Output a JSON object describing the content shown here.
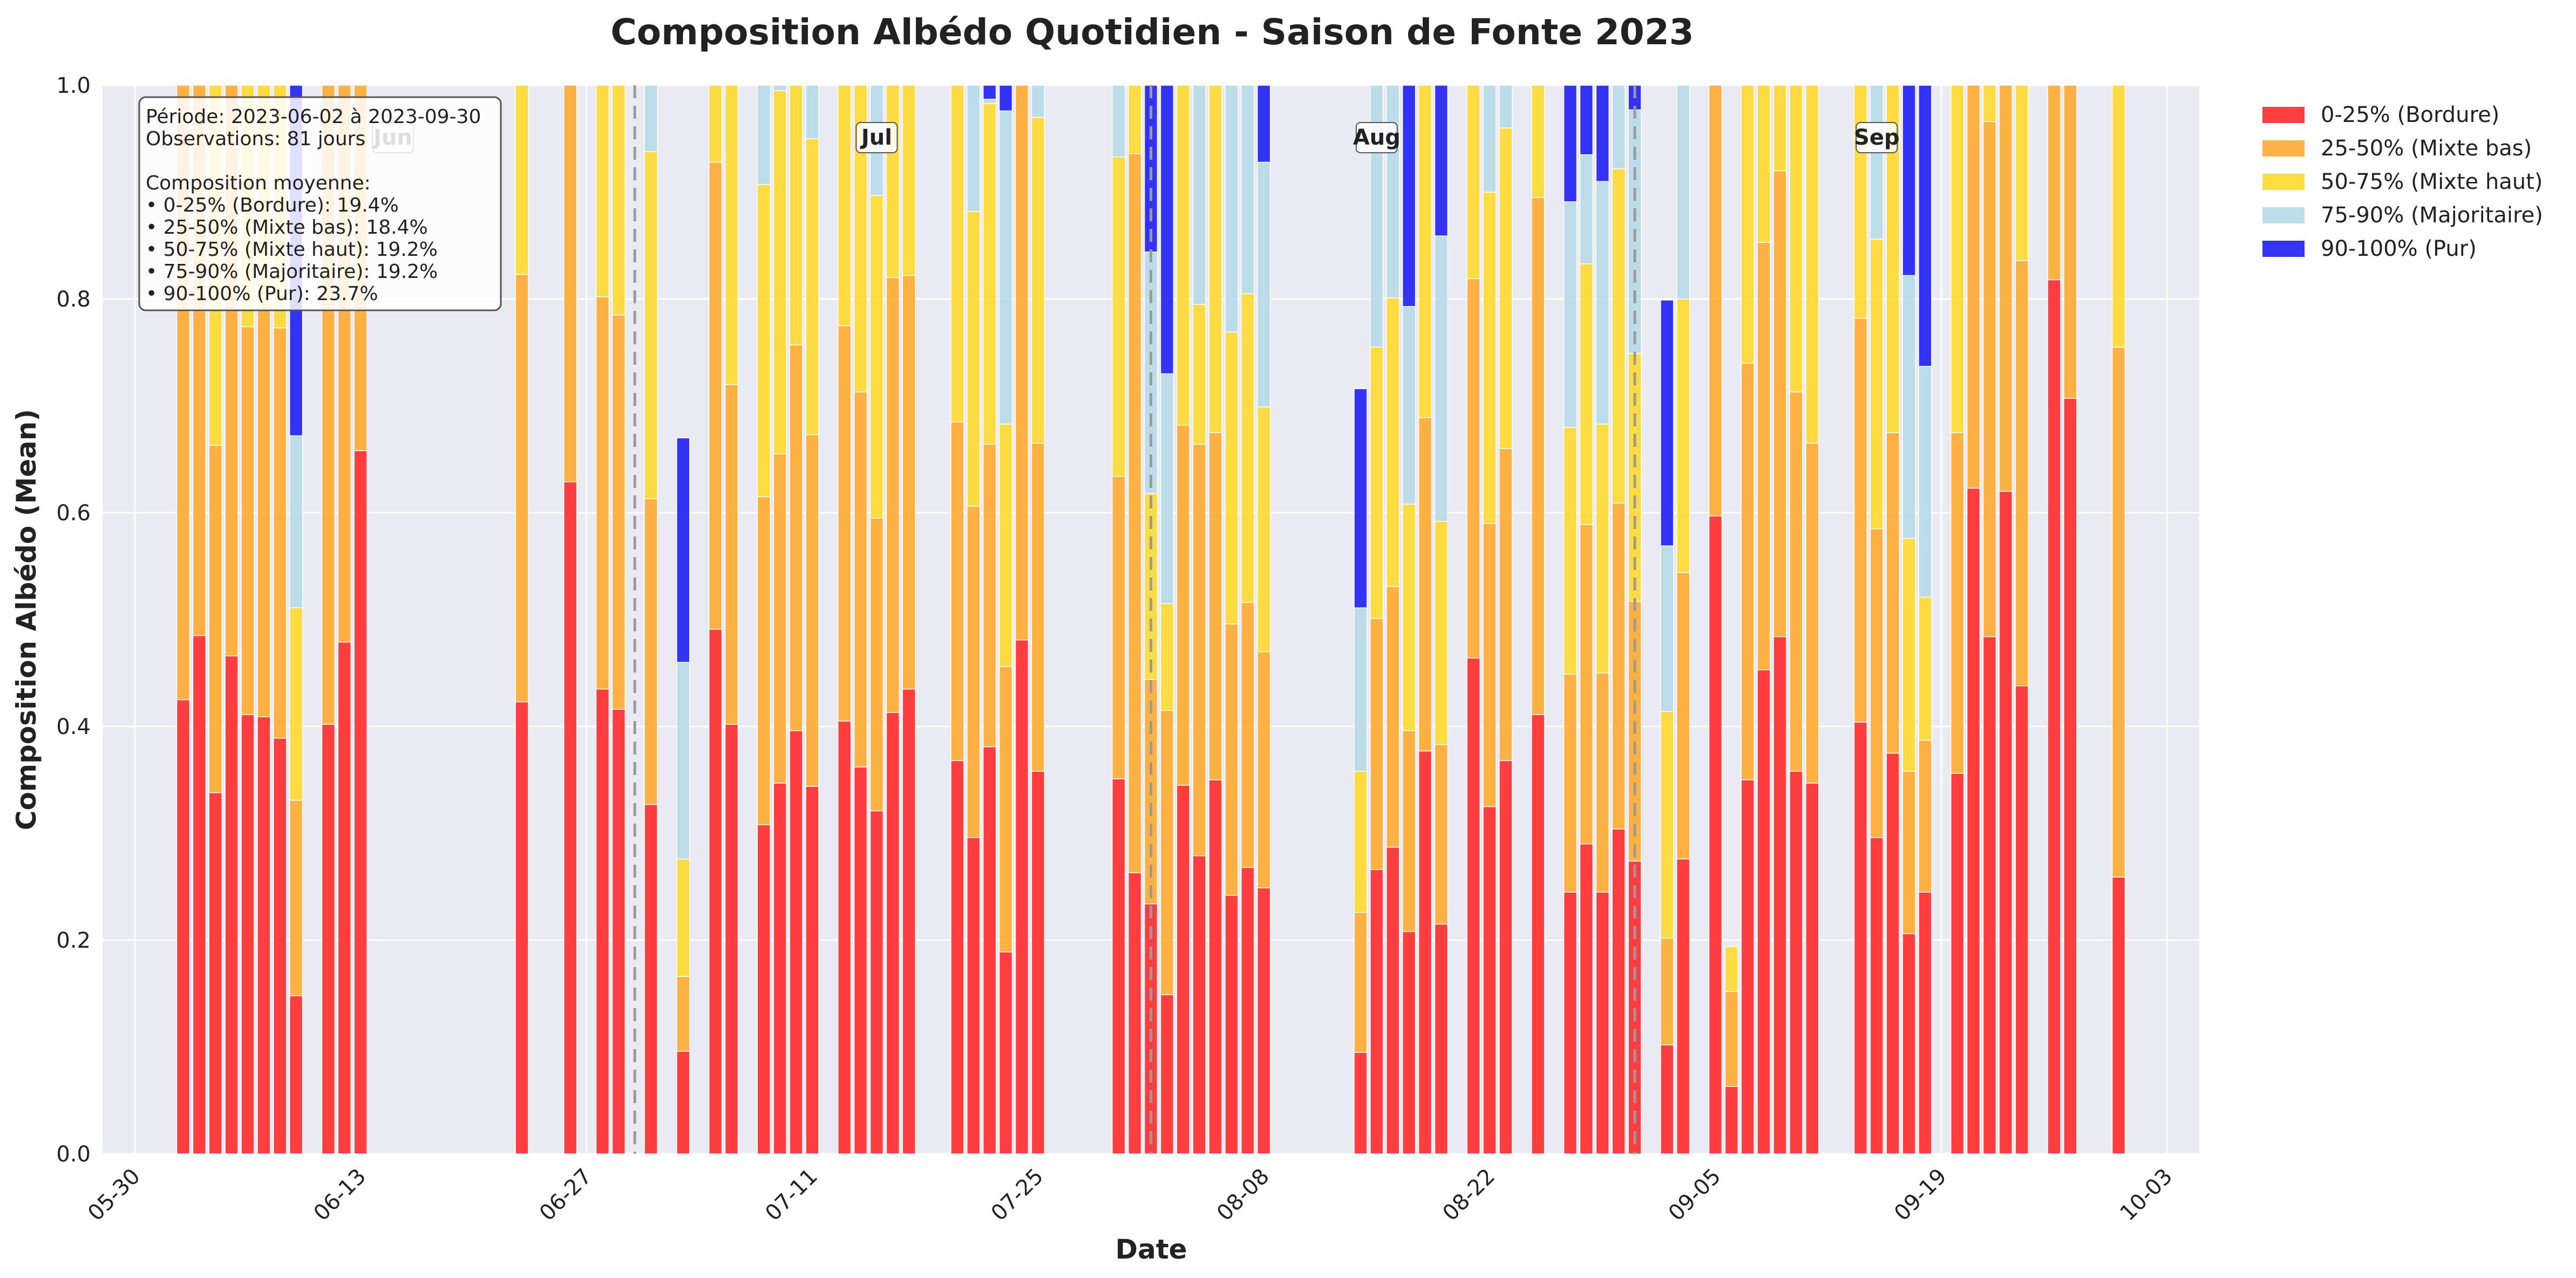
{
  "chart_data": {
    "type": "bar",
    "stacked": true,
    "title": "Composition Albédo Quotidien - Saison de Fonte 2023",
    "xlabel": "Date",
    "ylabel": "Composition Albédo (Mean)",
    "ylim": [
      0,
      1.0
    ],
    "yticks": [
      "0.0",
      "0.2",
      "0.4",
      "0.6",
      "0.8",
      "1.0"
    ],
    "xlim": [
      "2023-05-28",
      "2023-10-05"
    ],
    "xticks": [
      {
        "date": "2023-05-30",
        "label": "05-30"
      },
      {
        "date": "2023-06-13",
        "label": "06-13"
      },
      {
        "date": "2023-06-27",
        "label": "06-27"
      },
      {
        "date": "2023-07-11",
        "label": "07-11"
      },
      {
        "date": "2023-07-25",
        "label": "07-25"
      },
      {
        "date": "2023-08-08",
        "label": "08-08"
      },
      {
        "date": "2023-08-22",
        "label": "08-22"
      },
      {
        "date": "2023-09-05",
        "label": "09-05"
      },
      {
        "date": "2023-09-19",
        "label": "09-19"
      },
      {
        "date": "2023-10-03",
        "label": "10-03"
      }
    ],
    "grid": true,
    "legend_position": "outside-right",
    "series": [
      {
        "name": "0-25% (Bordure)",
        "color": "#ff2a2a"
      },
      {
        "name": "25-50% (Mixte bas)",
        "color": "#ffab30"
      },
      {
        "name": "50-75% (Mixte haut)",
        "color": "#ffd92f"
      },
      {
        "name": "75-90% (Majoritaire)",
        "color": "#b7dae8"
      },
      {
        "name": "90-100% (Pur)",
        "color": "#1f1ff5"
      }
    ],
    "month_markers": [
      {
        "label": "Jun",
        "date": "2023-06-01"
      },
      {
        "label": "Jul",
        "date": "2023-07-01"
      },
      {
        "label": "Aug",
        "date": "2023-08-01"
      },
      {
        "label": "Sep",
        "date": "2023-09-01"
      }
    ],
    "dashed_lines": [
      "2023-06-30",
      "2023-08-01",
      "2023-08-31"
    ],
    "info_box": [
      "Période: 2023-06-02 à 2023-09-30",
      "Observations: 81 jours",
      "",
      "Composition moyenne:",
      "• 0-25% (Bordure): 19.4%",
      "• 25-50% (Mixte bas): 18.4%",
      "• 50-75% (Mixte haut): 19.2%",
      "• 75-90% (Majoritaire): 19.2%",
      "• 90-100% (Pur): 23.7%"
    ],
    "days": [
      {
        "date": "2023-06-02",
        "values": [
          0.425,
          1.0,
          0,
          0,
          0
        ]
      },
      {
        "date": "2023-06-03",
        "values": [
          0.485,
          1.0,
          0,
          0,
          0
        ]
      },
      {
        "date": "2023-06-04",
        "values": [
          0.338,
          0.325,
          0.337,
          0,
          0
        ]
      },
      {
        "date": "2023-06-05",
        "values": [
          0.466,
          1.0,
          0,
          0,
          0
        ]
      },
      {
        "date": "2023-06-06",
        "values": [
          0.411,
          0.363,
          0.226,
          0,
          0
        ]
      },
      {
        "date": "2023-06-07",
        "values": [
          0.409,
          0.381,
          0.21,
          0,
          0
        ]
      },
      {
        "date": "2023-06-08",
        "values": [
          0.389,
          0.384,
          0.227,
          0,
          0
        ]
      },
      {
        "date": "2023-06-09",
        "values": [
          0.148,
          0.183,
          0.18,
          0.161,
          0.328
        ]
      },
      {
        "date": "2023-06-11",
        "values": [
          0.402,
          1.0,
          0,
          0,
          0
        ]
      },
      {
        "date": "2023-06-12",
        "values": [
          0.479,
          1.0,
          0,
          0,
          0
        ]
      },
      {
        "date": "2023-06-13",
        "values": [
          0.658,
          1.0,
          0,
          0,
          0
        ]
      },
      {
        "date": "2023-06-23",
        "values": [
          0.423,
          0.4,
          0.177,
          0,
          0
        ]
      },
      {
        "date": "2023-06-26",
        "values": [
          0.629,
          0.371,
          0,
          0,
          0
        ]
      },
      {
        "date": "2023-06-28",
        "values": [
          0.435,
          0.367,
          0.198,
          0,
          0
        ]
      },
      {
        "date": "2023-06-29",
        "values": [
          0.416,
          0.369,
          0.215,
          0,
          0
        ]
      },
      {
        "date": "2023-07-01",
        "values": [
          0.327,
          0.286,
          0.325,
          0.062,
          0
        ]
      },
      {
        "date": "2023-07-03",
        "values": [
          0.096,
          0.07,
          0.11,
          0.184,
          0.21
        ]
      },
      {
        "date": "2023-07-05",
        "values": [
          0.491,
          0.437,
          0.072,
          0,
          0
        ]
      },
      {
        "date": "2023-07-06",
        "values": [
          0.402,
          0.318,
          0.28,
          0,
          0
        ]
      },
      {
        "date": "2023-07-08",
        "values": [
          0.308,
          0.307,
          0.292,
          0.093,
          0
        ]
      },
      {
        "date": "2023-07-09",
        "values": [
          0.347,
          0.308,
          0.34,
          0.005,
          0
        ]
      },
      {
        "date": "2023-07-10",
        "values": [
          0.396,
          0.361,
          0.243,
          0,
          0
        ]
      },
      {
        "date": "2023-07-11",
        "values": [
          0.344,
          0.329,
          0.277,
          0.05,
          0
        ]
      },
      {
        "date": "2023-07-13",
        "values": [
          0.405,
          0.37,
          0.225,
          0,
          0
        ]
      },
      {
        "date": "2023-07-14",
        "values": [
          0.362,
          0.351,
          0.287,
          0,
          0
        ]
      },
      {
        "date": "2023-07-15",
        "values": [
          0.321,
          0.274,
          0.302,
          0.103,
          0
        ]
      },
      {
        "date": "2023-07-16",
        "values": [
          0.413,
          0.407,
          0.18,
          0,
          0
        ]
      },
      {
        "date": "2023-07-17",
        "values": [
          0.435,
          0.387,
          0.178,
          0,
          0
        ]
      },
      {
        "date": "2023-07-20",
        "values": [
          0.368,
          0.317,
          0.315,
          0,
          0
        ]
      },
      {
        "date": "2023-07-21",
        "values": [
          0.296,
          0.31,
          0.276,
          0.118,
          0
        ]
      },
      {
        "date": "2023-07-22",
        "values": [
          0.381,
          0.283,
          0.319,
          0.004,
          0.013
        ]
      },
      {
        "date": "2023-07-23",
        "values": [
          0.189,
          0.267,
          0.227,
          0.293,
          0.024
        ]
      },
      {
        "date": "2023-07-24",
        "values": [
          0.481,
          1.0,
          0,
          0,
          0
        ]
      },
      {
        "date": "2023-07-25",
        "values": [
          0.358,
          0.307,
          0.305,
          0.03,
          0
        ]
      },
      {
        "date": "2023-07-30",
        "values": [
          0.351,
          0.283,
          0.299,
          0.067,
          0
        ]
      },
      {
        "date": "2023-07-31",
        "values": [
          0.263,
          0.673,
          0.064,
          0,
          0
        ]
      },
      {
        "date": "2023-08-01",
        "values": [
          0.234,
          0.21,
          0.174,
          0.226,
          0.156
        ]
      },
      {
        "date": "2023-08-02",
        "values": [
          0.149,
          0.266,
          0.1,
          0.215,
          0.27
        ]
      },
      {
        "date": "2023-08-03",
        "values": [
          0.345,
          0.337,
          0.318,
          0,
          0
        ]
      },
      {
        "date": "2023-08-04",
        "values": [
          0.279,
          0.385,
          0.131,
          0.205,
          0
        ]
      },
      {
        "date": "2023-08-05",
        "values": [
          0.35,
          0.325,
          0.325,
          0,
          0
        ]
      },
      {
        "date": "2023-08-06",
        "values": [
          0.242,
          0.254,
          0.273,
          0.231,
          0
        ]
      },
      {
        "date": "2023-08-07",
        "values": [
          0.268,
          0.248,
          0.289,
          0.195,
          0
        ]
      },
      {
        "date": "2023-08-08",
        "values": [
          0.249,
          0.221,
          0.229,
          0.229,
          0.072
        ]
      },
      {
        "date": "2023-08-14",
        "values": [
          0.095,
          0.131,
          0.132,
          0.153,
          0.205
        ]
      },
      {
        "date": "2023-08-15",
        "values": [
          0.266,
          0.235,
          0.254,
          0.245,
          0
        ]
      },
      {
        "date": "2023-08-16",
        "values": [
          0.287,
          0.244,
          0.27,
          0.199,
          0
        ]
      },
      {
        "date": "2023-08-17",
        "values": [
          0.208,
          0.188,
          0.212,
          0.185,
          0.207
        ]
      },
      {
        "date": "2023-08-18",
        "values": [
          0.377,
          0.312,
          0.311,
          0,
          0
        ]
      },
      {
        "date": "2023-08-19",
        "values": [
          0.215,
          0.168,
          0.209,
          0.267,
          0.141
        ]
      },
      {
        "date": "2023-08-21",
        "values": [
          0.464,
          0.355,
          0.181,
          0,
          0
        ]
      },
      {
        "date": "2023-08-22",
        "values": [
          0.325,
          0.265,
          0.31,
          0.1,
          0
        ]
      },
      {
        "date": "2023-08-23",
        "values": [
          0.368,
          0.292,
          0.3,
          0.04,
          0
        ]
      },
      {
        "date": "2023-08-25",
        "values": [
          0.411,
          0.484,
          0.105,
          0,
          0
        ]
      },
      {
        "date": "2023-08-27",
        "values": [
          0.245,
          0.204,
          0.231,
          0.211,
          0.109
        ]
      },
      {
        "date": "2023-08-28",
        "values": [
          0.29,
          0.299,
          0.244,
          0.102,
          0.065
        ]
      },
      {
        "date": "2023-08-29",
        "values": [
          0.245,
          0.205,
          0.233,
          0.227,
          0.09
        ]
      },
      {
        "date": "2023-08-30",
        "values": [
          0.304,
          0.305,
          0.313,
          0.078,
          0
        ]
      },
      {
        "date": "2023-08-31",
        "values": [
          0.274,
          0.243,
          0.232,
          0.228,
          0.023
        ]
      },
      {
        "date": "2023-09-02",
        "values": [
          0.102,
          0.1,
          0.212,
          0.155,
          0.23
        ]
      },
      {
        "date": "2023-09-03",
        "values": [
          0.276,
          0.268,
          0.256,
          0.2,
          0
        ]
      },
      {
        "date": "2023-09-05",
        "values": [
          0.597,
          0.403,
          0,
          0,
          0
        ]
      },
      {
        "date": "2023-09-06",
        "values": [
          0.063,
          0.089,
          0.042,
          0,
          0
        ]
      },
      {
        "date": "2023-09-07",
        "values": [
          0.35,
          0.39,
          0.26,
          0,
          0
        ]
      },
      {
        "date": "2023-09-08",
        "values": [
          0.453,
          0.4,
          0.147,
          0,
          0
        ]
      },
      {
        "date": "2023-09-09",
        "values": [
          0.484,
          0.436,
          0.08,
          0,
          0
        ]
      },
      {
        "date": "2023-09-10",
        "values": [
          0.358,
          0.355,
          0.287,
          0,
          0
        ]
      },
      {
        "date": "2023-09-11",
        "values": [
          0.347,
          0.318,
          0.335,
          0,
          0
        ]
      },
      {
        "date": "2023-09-14",
        "values": [
          0.404,
          0.378,
          0.218,
          0,
          0
        ]
      },
      {
        "date": "2023-09-15",
        "values": [
          0.296,
          0.289,
          0.271,
          0.144,
          0
        ]
      },
      {
        "date": "2023-09-16",
        "values": [
          0.375,
          0.3,
          0.325,
          0,
          0
        ]
      },
      {
        "date": "2023-09-17",
        "values": [
          0.206,
          0.152,
          0.218,
          0.246,
          0.178
        ]
      },
      {
        "date": "2023-09-18",
        "values": [
          0.245,
          0.142,
          0.134,
          0.216,
          0.263
        ]
      },
      {
        "date": "2023-09-20",
        "values": [
          0.356,
          0.319,
          0.325,
          0,
          0
        ]
      },
      {
        "date": "2023-09-21",
        "values": [
          0.623,
          0.377,
          0,
          0,
          0
        ]
      },
      {
        "date": "2023-09-22",
        "values": [
          0.484,
          0.482,
          0.034,
          0,
          0
        ]
      },
      {
        "date": "2023-09-23",
        "values": [
          0.62,
          0.38,
          0,
          0,
          0
        ]
      },
      {
        "date": "2023-09-24",
        "values": [
          0.438,
          0.398,
          0.164,
          0,
          0
        ]
      },
      {
        "date": "2023-09-26",
        "values": [
          0.818,
          0.182,
          0,
          0,
          0
        ]
      },
      {
        "date": "2023-09-27",
        "values": [
          0.707,
          0.293,
          0,
          0,
          0
        ]
      },
      {
        "date": "2023-09-30",
        "values": [
          0.259,
          0.496,
          0.245,
          0,
          0
        ]
      }
    ]
  }
}
